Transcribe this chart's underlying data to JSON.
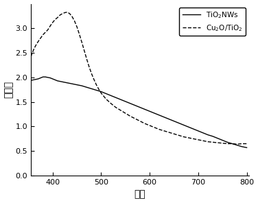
{
  "title": "",
  "xlabel": "波长",
  "ylabel": "吸光度",
  "xlim": [
    355,
    805
  ],
  "ylim": [
    0.0,
    3.5
  ],
  "xticks": [
    400,
    500,
    600,
    700,
    800
  ],
  "yticks": [
    0.0,
    0.5,
    1.0,
    1.5,
    2.0,
    2.5,
    3.0
  ],
  "line1_label": "TiO$_2$NWs",
  "line2_label": "Cu$_2$O/TiO$_2$",
  "line1_style": "-",
  "line2_style": "--",
  "line_color": "#000000",
  "background_color": "#ffffff",
  "legend_loc": "upper right",
  "tio2_x": [
    355,
    360,
    365,
    370,
    375,
    380,
    385,
    390,
    395,
    400,
    405,
    410,
    415,
    420,
    425,
    430,
    435,
    440,
    445,
    450,
    460,
    470,
    480,
    490,
    500,
    510,
    520,
    530,
    540,
    550,
    560,
    570,
    580,
    590,
    600,
    610,
    620,
    630,
    640,
    650,
    660,
    670,
    680,
    690,
    700,
    710,
    720,
    730,
    740,
    750,
    760,
    770,
    780,
    790,
    800
  ],
  "tio2_y": [
    1.94,
    1.95,
    1.96,
    1.97,
    1.99,
    2.01,
    2.01,
    2.0,
    1.99,
    1.97,
    1.95,
    1.93,
    1.92,
    1.91,
    1.9,
    1.89,
    1.88,
    1.87,
    1.86,
    1.85,
    1.83,
    1.8,
    1.77,
    1.74,
    1.71,
    1.67,
    1.63,
    1.59,
    1.55,
    1.51,
    1.47,
    1.43,
    1.39,
    1.35,
    1.31,
    1.27,
    1.23,
    1.19,
    1.15,
    1.11,
    1.07,
    1.03,
    0.99,
    0.95,
    0.91,
    0.87,
    0.83,
    0.8,
    0.76,
    0.72,
    0.68,
    0.65,
    0.62,
    0.59,
    0.57
  ],
  "cu2o_x": [
    355,
    360,
    365,
    370,
    375,
    380,
    385,
    390,
    395,
    400,
    405,
    410,
    415,
    420,
    425,
    430,
    435,
    440,
    445,
    450,
    455,
    460,
    465,
    470,
    475,
    480,
    485,
    490,
    495,
    500,
    510,
    520,
    530,
    540,
    550,
    560,
    570,
    580,
    590,
    600,
    610,
    620,
    630,
    640,
    650,
    660,
    670,
    680,
    690,
    700,
    710,
    720,
    730,
    740,
    750,
    760,
    770,
    780,
    790,
    800
  ],
  "cu2o_y": [
    2.42,
    2.55,
    2.65,
    2.73,
    2.8,
    2.87,
    2.92,
    2.97,
    3.05,
    3.12,
    3.18,
    3.22,
    3.27,
    3.3,
    3.32,
    3.33,
    3.3,
    3.24,
    3.15,
    3.03,
    2.88,
    2.72,
    2.55,
    2.38,
    2.22,
    2.08,
    1.96,
    1.85,
    1.76,
    1.68,
    1.56,
    1.47,
    1.39,
    1.33,
    1.27,
    1.21,
    1.16,
    1.11,
    1.06,
    1.02,
    0.98,
    0.94,
    0.91,
    0.88,
    0.85,
    0.82,
    0.79,
    0.77,
    0.75,
    0.73,
    0.71,
    0.69,
    0.68,
    0.67,
    0.66,
    0.65,
    0.65,
    0.64,
    0.65,
    0.65
  ]
}
